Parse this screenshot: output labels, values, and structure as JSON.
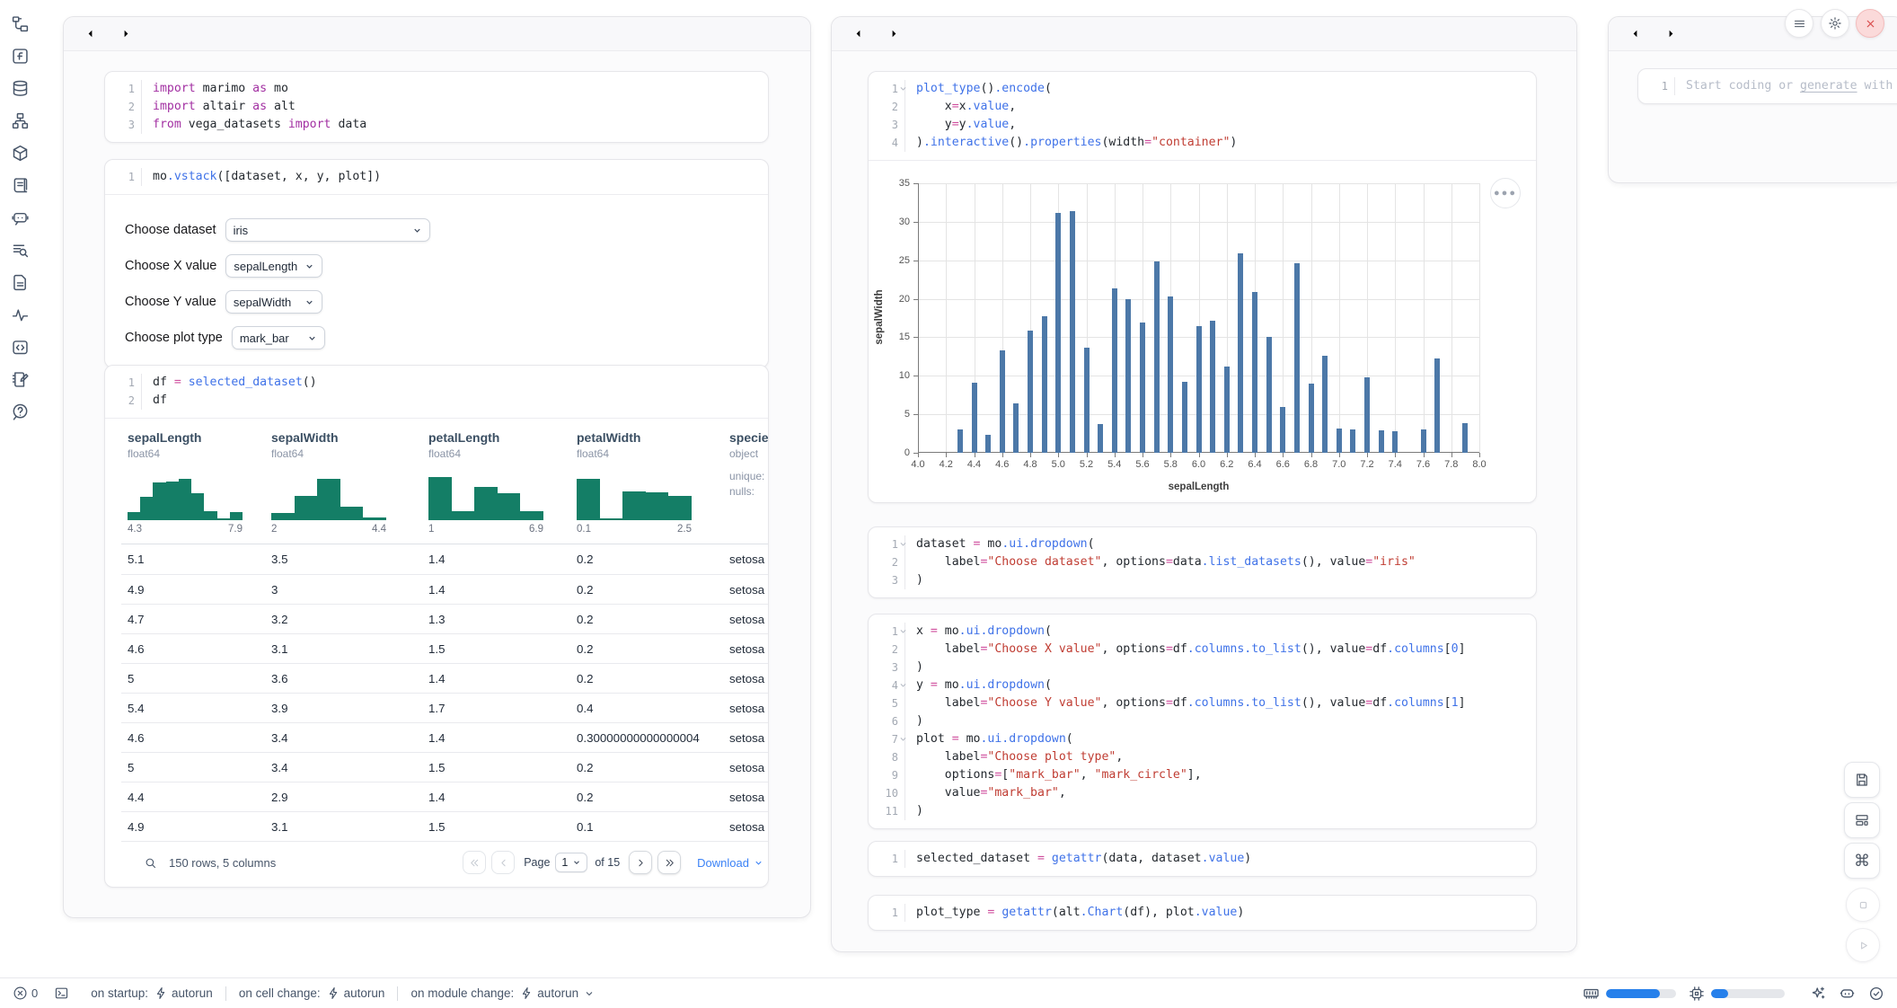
{
  "colors": {
    "bar_blue": "#4c78a8",
    "histogram_teal": "#147e66",
    "meter_blue": "#2680eb",
    "link_blue": "#3b82f6",
    "close_red": "#d94a4a",
    "keyword_purple": "#a22fa2",
    "function_blue": "#3f72e8",
    "string_red": "#c03d33"
  },
  "left_rail": {
    "icons": [
      "file-tree",
      "function-square",
      "database",
      "sitemap",
      "package",
      "scroll-text",
      "bot-chat",
      "log-search",
      "document",
      "activity",
      "code-snippet",
      "notebook-pen",
      "help-chat"
    ]
  },
  "left_panel": {
    "cells": {
      "imports": {
        "lines": [
          {
            "n": "1",
            "seg": [
              [
                "kw",
                "import"
              ],
              [
                "pl",
                " marimo "
              ],
              [
                "kw",
                "as"
              ],
              [
                "pl",
                " mo"
              ]
            ]
          },
          {
            "n": "2",
            "seg": [
              [
                "kw",
                "import"
              ],
              [
                "pl",
                " altair "
              ],
              [
                "kw",
                "as"
              ],
              [
                "pl",
                " alt"
              ]
            ]
          },
          {
            "n": "3",
            "seg": [
              [
                "kw",
                "from"
              ],
              [
                "pl",
                " vega_datasets "
              ],
              [
                "kw",
                "import"
              ],
              [
                "pl",
                " data"
              ]
            ]
          }
        ]
      },
      "vstack": {
        "lines": [
          {
            "n": "1",
            "seg": [
              [
                "pl",
                "mo"
              ],
              [
                "fn",
                ".vstack"
              ],
              [
                "pl",
                "([dataset, x, y, plot])"
              ]
            ]
          }
        ]
      },
      "df": {
        "lines": [
          {
            "n": "1",
            "seg": [
              [
                "pl",
                "df "
              ],
              [
                "op",
                "="
              ],
              [
                "pl",
                " "
              ],
              [
                "fn",
                "selected_dataset"
              ],
              [
                "pl",
                "()"
              ]
            ]
          },
          {
            "n": "2",
            "seg": [
              [
                "pl",
                "df"
              ]
            ]
          }
        ]
      }
    },
    "form": {
      "rows": [
        {
          "label": "Choose dataset",
          "value": "iris"
        },
        {
          "label": "Choose X value",
          "value": "sepalLength"
        },
        {
          "label": "Choose Y value",
          "value": "sepalWidth"
        },
        {
          "label": "Choose plot type",
          "value": "mark_bar"
        }
      ]
    },
    "table": {
      "columns": [
        {
          "name": "sepalLength",
          "type": "float64",
          "min": "4.3",
          "max": "7.9",
          "hist": [
            0.16,
            0.45,
            0.73,
            0.75,
            0.79,
            0.52,
            0.18,
            0.04,
            0.16
          ]
        },
        {
          "name": "sepalWidth",
          "type": "float64",
          "min": "2",
          "max": "4.4",
          "hist": [
            0.13,
            0.47,
            0.8,
            0.26,
            0.05
          ]
        },
        {
          "name": "petalLength",
          "type": "float64",
          "min": "1",
          "max": "6.9",
          "hist": [
            0.82,
            0.17,
            0.63,
            0.52,
            0.17
          ]
        },
        {
          "name": "petalWidth",
          "type": "float64",
          "min": "0.1",
          "max": "2.5",
          "hist": [
            0.8,
            0.03,
            0.56,
            0.53,
            0.46
          ]
        },
        {
          "name": "species",
          "type": "object",
          "meta": [
            "unique:",
            "nulls:"
          ]
        }
      ],
      "rows": [
        [
          "5.1",
          "3.5",
          "1.4",
          "0.2",
          "setosa"
        ],
        [
          "4.9",
          "3",
          "1.4",
          "0.2",
          "setosa"
        ],
        [
          "4.7",
          "3.2",
          "1.3",
          "0.2",
          "setosa"
        ],
        [
          "4.6",
          "3.1",
          "1.5",
          "0.2",
          "setosa"
        ],
        [
          "5",
          "3.6",
          "1.4",
          "0.2",
          "setosa"
        ],
        [
          "5.4",
          "3.9",
          "1.7",
          "0.4",
          "setosa"
        ],
        [
          "4.6",
          "3.4",
          "1.4",
          "0.30000000000000004",
          "setosa"
        ],
        [
          "5",
          "3.4",
          "1.5",
          "0.2",
          "setosa"
        ],
        [
          "4.4",
          "2.9",
          "1.4",
          "0.2",
          "setosa"
        ],
        [
          "4.9",
          "3.1",
          "1.5",
          "0.1",
          "setosa"
        ]
      ],
      "footer": {
        "summary": "150 rows, 5 columns",
        "page_label": "Page",
        "page_value": "1",
        "of_label": "of 15",
        "download_label": "Download"
      }
    }
  },
  "middle_panel": {
    "cells": {
      "plot": {
        "lines": [
          {
            "n": "1",
            "fold": true,
            "seg": [
              [
                "fn",
                "plot_type"
              ],
              [
                "pl",
                "()"
              ],
              [
                "fn",
                ".encode"
              ],
              [
                "pl",
                "("
              ]
            ]
          },
          {
            "n": "2",
            "seg": [
              [
                "pl",
                "    x"
              ],
              [
                "op",
                "="
              ],
              [
                "pl",
                "x"
              ],
              [
                "fn",
                ".value"
              ],
              [
                "pl",
                ","
              ]
            ]
          },
          {
            "n": "3",
            "seg": [
              [
                "pl",
                "    y"
              ],
              [
                "op",
                "="
              ],
              [
                "pl",
                "y"
              ],
              [
                "fn",
                ".value"
              ],
              [
                "pl",
                ","
              ]
            ]
          },
          {
            "n": "4",
            "seg": [
              [
                "pl",
                ")"
              ],
              [
                "fn",
                ".interactive"
              ],
              [
                "pl",
                "()"
              ],
              [
                "fn",
                ".properties"
              ],
              [
                "pl",
                "(width"
              ],
              [
                "op",
                "="
              ],
              [
                "str",
                "\"container\""
              ],
              [
                "pl",
                ")"
              ]
            ]
          }
        ]
      },
      "dataset": {
        "lines": [
          {
            "n": "1",
            "fold": true,
            "seg": [
              [
                "pl",
                "dataset "
              ],
              [
                "op",
                "="
              ],
              [
                "pl",
                " mo"
              ],
              [
                "fn",
                ".ui.dropdown"
              ],
              [
                "pl",
                "("
              ]
            ]
          },
          {
            "n": "2",
            "seg": [
              [
                "pl",
                "    label"
              ],
              [
                "op",
                "="
              ],
              [
                "str",
                "\"Choose dataset\""
              ],
              [
                "pl",
                ", options"
              ],
              [
                "op",
                "="
              ],
              [
                "pl",
                "data"
              ],
              [
                "fn",
                ".list_datasets"
              ],
              [
                "pl",
                "(), value"
              ],
              [
                "op",
                "="
              ],
              [
                "str",
                "\"iris\""
              ]
            ]
          },
          {
            "n": "3",
            "seg": [
              [
                "pl",
                ")"
              ]
            ]
          }
        ]
      },
      "xyplot": {
        "lines": [
          {
            "n": "1",
            "fold": true,
            "seg": [
              [
                "pl",
                "x "
              ],
              [
                "op",
                "="
              ],
              [
                "pl",
                " mo"
              ],
              [
                "fn",
                ".ui.dropdown"
              ],
              [
                "pl",
                "("
              ]
            ]
          },
          {
            "n": "2",
            "seg": [
              [
                "pl",
                "    label"
              ],
              [
                "op",
                "="
              ],
              [
                "str",
                "\"Choose X value\""
              ],
              [
                "pl",
                ", options"
              ],
              [
                "op",
                "="
              ],
              [
                "pl",
                "df"
              ],
              [
                "fn",
                ".columns.to_list"
              ],
              [
                "pl",
                "(), value"
              ],
              [
                "op",
                "="
              ],
              [
                "pl",
                "df"
              ],
              [
                "fn",
                ".columns"
              ],
              [
                "pl",
                "["
              ],
              [
                "num",
                "0"
              ],
              [
                "pl",
                "]"
              ]
            ]
          },
          {
            "n": "3",
            "seg": [
              [
                "pl",
                ")"
              ]
            ]
          },
          {
            "n": "4",
            "fold": true,
            "seg": [
              [
                "pl",
                "y "
              ],
              [
                "op",
                "="
              ],
              [
                "pl",
                " mo"
              ],
              [
                "fn",
                ".ui.dropdown"
              ],
              [
                "pl",
                "("
              ]
            ]
          },
          {
            "n": "5",
            "seg": [
              [
                "pl",
                "    label"
              ],
              [
                "op",
                "="
              ],
              [
                "str",
                "\"Choose Y value\""
              ],
              [
                "pl",
                ", options"
              ],
              [
                "op",
                "="
              ],
              [
                "pl",
                "df"
              ],
              [
                "fn",
                ".columns.to_list"
              ],
              [
                "pl",
                "(), value"
              ],
              [
                "op",
                "="
              ],
              [
                "pl",
                "df"
              ],
              [
                "fn",
                ".columns"
              ],
              [
                "pl",
                "["
              ],
              [
                "num",
                "1"
              ],
              [
                "pl",
                "]"
              ]
            ]
          },
          {
            "n": "6",
            "seg": [
              [
                "pl",
                ")"
              ]
            ]
          },
          {
            "n": "7",
            "fold": true,
            "seg": [
              [
                "pl",
                "plot "
              ],
              [
                "op",
                "="
              ],
              [
                "pl",
                " mo"
              ],
              [
                "fn",
                ".ui.dropdown"
              ],
              [
                "pl",
                "("
              ]
            ]
          },
          {
            "n": "8",
            "seg": [
              [
                "pl",
                "    label"
              ],
              [
                "op",
                "="
              ],
              [
                "str",
                "\"Choose plot type\""
              ],
              [
                "pl",
                ","
              ]
            ]
          },
          {
            "n": "9",
            "seg": [
              [
                "pl",
                "    options"
              ],
              [
                "op",
                "="
              ],
              [
                "pl",
                "["
              ],
              [
                "str",
                "\"mark_bar\""
              ],
              [
                "pl",
                ", "
              ],
              [
                "str",
                "\"mark_circle\""
              ],
              [
                "pl",
                "],"
              ]
            ]
          },
          {
            "n": "10",
            "seg": [
              [
                "pl",
                "    value"
              ],
              [
                "op",
                "="
              ],
              [
                "str",
                "\"mark_bar\""
              ],
              [
                "pl",
                ","
              ]
            ]
          },
          {
            "n": "11",
            "seg": [
              [
                "pl",
                ")"
              ]
            ]
          }
        ]
      },
      "selected": {
        "lines": [
          {
            "n": "1",
            "seg": [
              [
                "pl",
                "selected_dataset "
              ],
              [
                "op",
                "="
              ],
              [
                "pl",
                " "
              ],
              [
                "fn",
                "getattr"
              ],
              [
                "pl",
                "(data, dataset"
              ],
              [
                "fn",
                ".value"
              ],
              [
                "pl",
                ")"
              ]
            ]
          }
        ]
      },
      "ptype": {
        "lines": [
          {
            "n": "1",
            "seg": [
              [
                "pl",
                "plot_type "
              ],
              [
                "op",
                "="
              ],
              [
                "pl",
                " "
              ],
              [
                "fn",
                "getattr"
              ],
              [
                "pl",
                "(alt"
              ],
              [
                "fn",
                ".Chart"
              ],
              [
                "pl",
                "(df), plot"
              ],
              [
                "fn",
                ".value"
              ],
              [
                "pl",
                ")"
              ]
            ]
          }
        ]
      }
    }
  },
  "right_panel": {
    "scratch_line_number": "1",
    "placeholder_pre": "Start coding or ",
    "placeholder_link": "generate",
    "placeholder_post": " with AI"
  },
  "chart_data": {
    "type": "bar",
    "title": "",
    "xlabel": "sepalLength",
    "ylabel": "sepalWidth",
    "xlim": [
      4.0,
      8.0
    ],
    "ylim": [
      0,
      35
    ],
    "x_tick_step": 0.2,
    "y_tick_step": 5,
    "grid": true,
    "x": [
      4.3,
      4.4,
      4.5,
      4.6,
      4.7,
      4.8,
      4.9,
      5.0,
      5.1,
      5.2,
      5.3,
      5.4,
      5.5,
      5.6,
      5.7,
      5.8,
      5.9,
      6.0,
      6.1,
      6.2,
      6.3,
      6.4,
      6.5,
      6.6,
      6.7,
      6.8,
      6.9,
      7.0,
      7.1,
      7.2,
      7.3,
      7.4,
      7.6,
      7.7,
      7.9
    ],
    "values": [
      3.0,
      9.1,
      2.3,
      13.3,
      6.4,
      15.9,
      17.7,
      31.2,
      31.4,
      13.7,
      3.7,
      21.4,
      20.0,
      16.9,
      24.9,
      20.3,
      9.2,
      16.5,
      17.1,
      11.2,
      25.9,
      20.9,
      15.0,
      5.9,
      24.6,
      9.0,
      12.6,
      3.2,
      3.0,
      9.8,
      2.9,
      2.8,
      3.0,
      12.3,
      3.8
    ]
  },
  "status_bar": {
    "error_count": "0",
    "run_items": [
      {
        "label": "on startup:",
        "value": "autorun",
        "chevron": false
      },
      {
        "label": "on cell change:",
        "value": "autorun",
        "chevron": false
      },
      {
        "label": "on module change:",
        "value": "autorun",
        "chevron": true
      }
    ],
    "memory_fill_pct": 77,
    "cpu_fill_pct": 23
  }
}
